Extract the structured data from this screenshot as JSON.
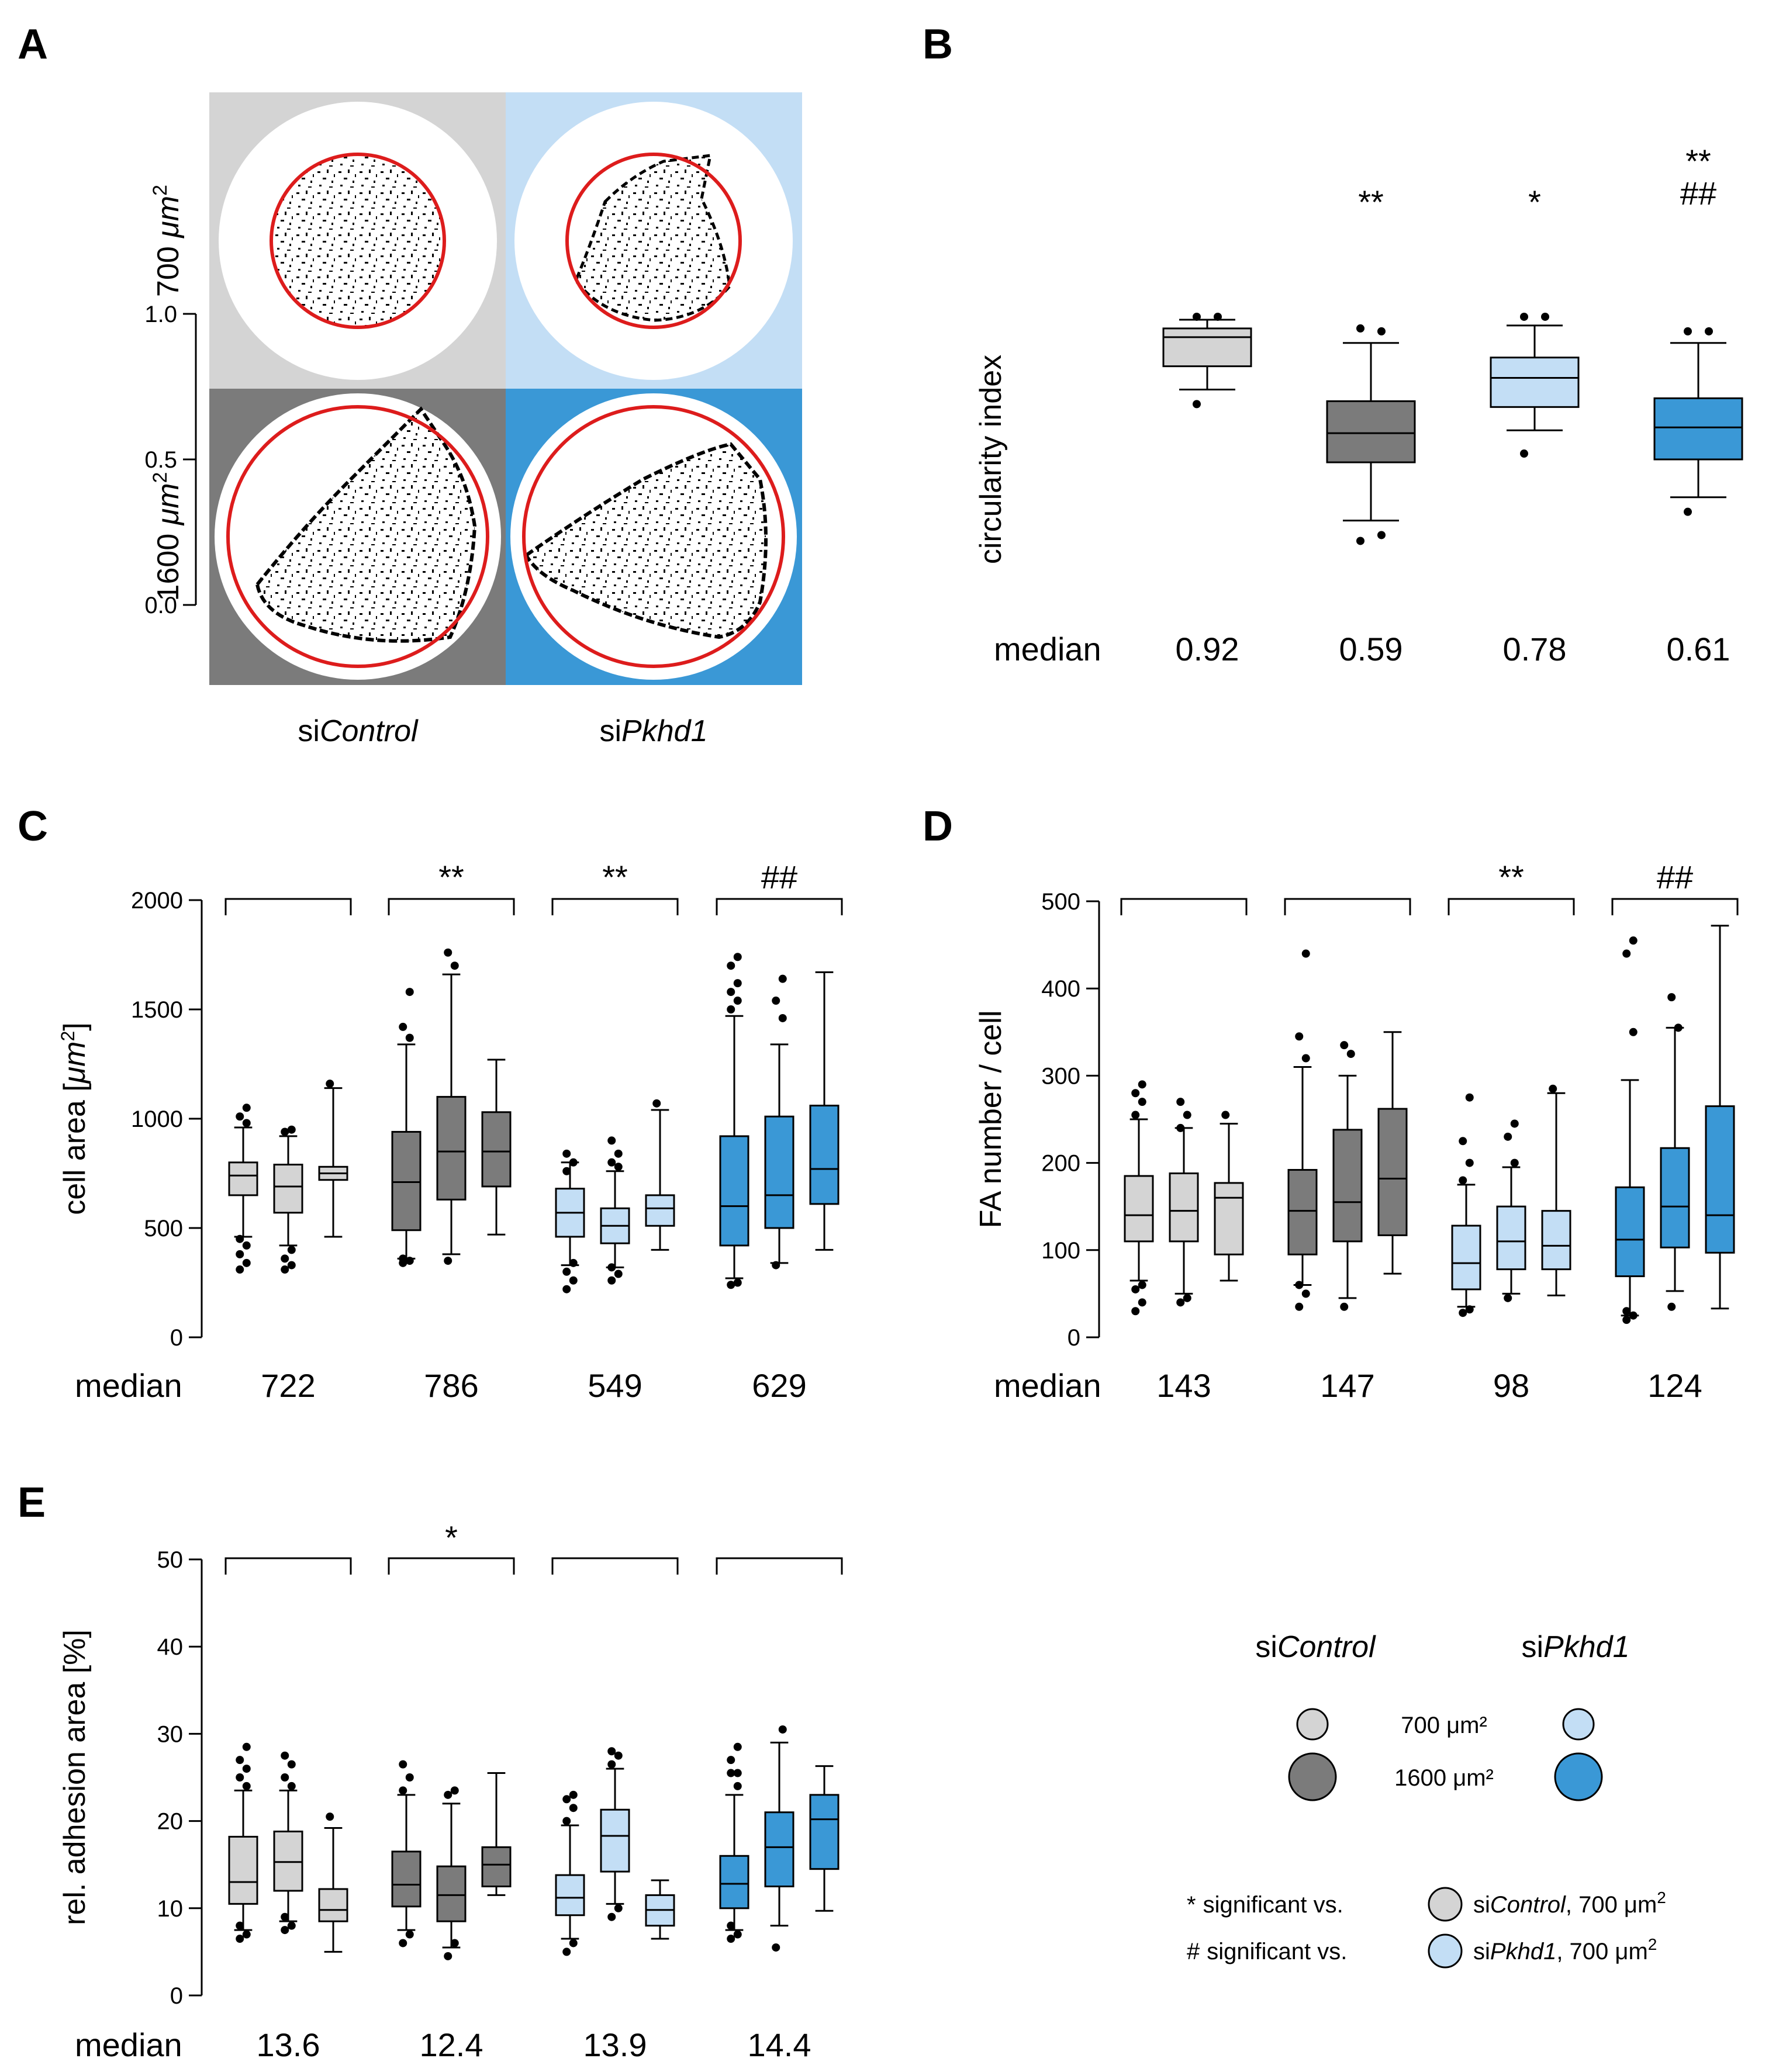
{
  "colors": {
    "control_700": "#d4d4d4",
    "control_1600": "#7b7b7b",
    "pkhd1_700": "#c3def5",
    "pkhd1_1600": "#3a98d6",
    "fit_circle": "#dd1c1c"
  },
  "panel_labels": [
    "A",
    "B",
    "C",
    "D",
    "E"
  ],
  "panel_a": {
    "row_labels": [
      {
        "text": "700 ",
        "unit": "μm",
        "sup": "2"
      },
      {
        "text": "1600 ",
        "unit": "μm",
        "sup": "2"
      }
    ],
    "col_labels": [
      {
        "prefix": "si",
        "gene": "Control"
      },
      {
        "prefix": "si",
        "gene": "Pkhd1"
      }
    ]
  },
  "legend": {
    "header": [
      {
        "prefix": "si",
        "gene": "Control"
      },
      {
        "prefix": "si",
        "gene": "Pkhd1"
      }
    ],
    "sizes": [
      "700 μm²",
      "1600 μm²"
    ],
    "notes": [
      {
        "symbol": "*",
        "text": "significant  vs.",
        "prefix": "si",
        "gene": "Control",
        "suffix": ",  700 μm",
        "sup": "2"
      },
      {
        "symbol": "#",
        "text": "significant  vs.",
        "prefix": "si",
        "gene": "Pkhd1",
        "suffix": ",   700 μm",
        "sup": "2"
      }
    ]
  },
  "chart_data": [
    {
      "panel": "B",
      "type": "box",
      "ylabel": "circularity index",
      "ylim": [
        0,
        1
      ],
      "yticks": [
        "0.0",
        "0.5",
        "1.0"
      ],
      "median_label": "median",
      "groups": [
        {
          "name": "siControl 700 μm²",
          "median_text": "0.92",
          "sig": [],
          "box": {
            "q1": 0.82,
            "median": 0.92,
            "q3": 0.95,
            "wlo": 0.74,
            "whi": 0.98,
            "outliers": [
              0.69,
              0.99,
              0.99
            ]
          }
        },
        {
          "name": "siControl 1600 μm²",
          "median_text": "0.59",
          "sig": [
            "**"
          ],
          "box": {
            "q1": 0.49,
            "median": 0.59,
            "q3": 0.7,
            "wlo": 0.29,
            "whi": 0.9,
            "outliers": [
              0.22,
              0.24,
              0.95,
              0.94
            ]
          }
        },
        {
          "name": "siPkhd1 700 μm²",
          "median_text": "0.78",
          "sig": [
            "*"
          ],
          "box": {
            "q1": 0.68,
            "median": 0.78,
            "q3": 0.85,
            "wlo": 0.6,
            "whi": 0.96,
            "outliers": [
              0.52,
              0.99,
              0.99
            ]
          }
        },
        {
          "name": "siPkhd1 1600 μm²",
          "median_text": "0.61",
          "sig": [
            "**",
            "##"
          ],
          "box": {
            "q1": 0.5,
            "median": 0.61,
            "q3": 0.71,
            "wlo": 0.37,
            "whi": 0.9,
            "outliers": [
              0.32,
              0.94,
              0.94
            ]
          }
        }
      ]
    },
    {
      "panel": "C",
      "type": "box",
      "ylabel": "cell area [",
      "yunit": "μm",
      "yunit_sup": "2",
      "yclose": "]",
      "ylim": [
        0,
        2000
      ],
      "yticks": [
        "0",
        "500",
        "1000",
        "1500",
        "2000"
      ],
      "median_label": "median",
      "groups": [
        {
          "name": "siControl 700 μm²",
          "median_text": "722",
          "sig": "",
          "boxes": [
            {
              "q1": 650,
              "median": 740,
              "q3": 800,
              "wlo": 460,
              "whi": 960,
              "outliers": [
                310,
                340,
                380,
                420,
                450,
                980,
                1010,
                1050
              ]
            },
            {
              "q1": 570,
              "median": 690,
              "q3": 790,
              "wlo": 420,
              "whi": 920,
              "outliers": [
                310,
                330,
                360,
                400,
                940,
                950
              ]
            },
            {
              "q1": 720,
              "median": 750,
              "q3": 780,
              "wlo": 460,
              "whi": 1140,
              "outliers": [
                1160
              ]
            }
          ]
        },
        {
          "name": "siControl 1600 μm²",
          "median_text": "786",
          "sig": "**",
          "boxes": [
            {
              "q1": 490,
              "median": 710,
              "q3": 940,
              "wlo": 360,
              "whi": 1340,
              "outliers": [
                340,
                350,
                360,
                1370,
                1420,
                1580
              ]
            },
            {
              "q1": 630,
              "median": 850,
              "q3": 1100,
              "wlo": 380,
              "whi": 1660,
              "outliers": [
                350,
                1700,
                1760
              ]
            },
            {
              "q1": 690,
              "median": 850,
              "q3": 1030,
              "wlo": 470,
              "whi": 1270,
              "outliers": []
            }
          ]
        },
        {
          "name": "siPkhd1 700 μm²",
          "median_text": "549",
          "sig": "**",
          "boxes": [
            {
              "q1": 460,
              "median": 570,
              "q3": 680,
              "wlo": 330,
              "whi": 800,
              "outliers": [
                220,
                260,
                300,
                340,
                760,
                800,
                840
              ]
            },
            {
              "q1": 430,
              "median": 510,
              "q3": 590,
              "wlo": 320,
              "whi": 760,
              "outliers": [
                260,
                290,
                320,
                780,
                800,
                840,
                900
              ]
            },
            {
              "q1": 510,
              "median": 590,
              "q3": 650,
              "wlo": 400,
              "whi": 1040,
              "outliers": [
                1070
              ]
            }
          ]
        },
        {
          "name": "siPkhd1 1600 μm²",
          "median_text": "629",
          "sig": "##",
          "boxes": [
            {
              "q1": 420,
              "median": 600,
              "q3": 920,
              "wlo": 270,
              "whi": 1470,
              "outliers": [
                240,
                250,
                1500,
                1540,
                1580,
                1620,
                1700,
                1740
              ]
            },
            {
              "q1": 500,
              "median": 650,
              "q3": 1010,
              "wlo": 340,
              "whi": 1340,
              "outliers": [
                330,
                1460,
                1540,
                1640
              ]
            },
            {
              "q1": 610,
              "median": 770,
              "q3": 1060,
              "wlo": 400,
              "whi": 1670,
              "outliers": []
            }
          ]
        }
      ]
    },
    {
      "panel": "D",
      "type": "box",
      "ylabel": "FA number / cell",
      "ylim": [
        0,
        500
      ],
      "yticks": [
        "0",
        "100",
        "200",
        "300",
        "400",
        "500"
      ],
      "median_label": "median",
      "groups": [
        {
          "name": "siControl 700 μm²",
          "median_text": "143",
          "sig": "",
          "boxes": [
            {
              "q1": 110,
              "median": 140,
              "q3": 185,
              "wlo": 65,
              "whi": 250,
              "outliers": [
                30,
                40,
                55,
                60,
                255,
                270,
                280,
                290
              ]
            },
            {
              "q1": 110,
              "median": 145,
              "q3": 188,
              "wlo": 50,
              "whi": 240,
              "outliers": [
                40,
                45,
                240,
                255,
                270
              ]
            },
            {
              "q1": 95,
              "median": 160,
              "q3": 177,
              "wlo": 65,
              "whi": 245,
              "outliers": [
                255
              ]
            }
          ]
        },
        {
          "name": "siControl 1600 μm²",
          "median_text": "147",
          "sig": "",
          "boxes": [
            {
              "q1": 95,
              "median": 145,
              "q3": 192,
              "wlo": 60,
              "whi": 310,
              "outliers": [
                35,
                50,
                60,
                320,
                345,
                440
              ]
            },
            {
              "q1": 110,
              "median": 155,
              "q3": 238,
              "wlo": 45,
              "whi": 300,
              "outliers": [
                35,
                325,
                335
              ]
            },
            {
              "q1": 117,
              "median": 182,
              "q3": 262,
              "wlo": 73,
              "whi": 350,
              "outliers": []
            }
          ]
        },
        {
          "name": "siPkhd1 700 μm²",
          "median_text": "98",
          "sig": "**",
          "boxes": [
            {
              "q1": 55,
              "median": 85,
              "q3": 128,
              "wlo": 35,
              "whi": 175,
              "outliers": [
                28,
                32,
                180,
                200,
                225,
                275
              ]
            },
            {
              "q1": 78,
              "median": 110,
              "q3": 150,
              "wlo": 50,
              "whi": 195,
              "outliers": [
                45,
                200,
                230,
                245
              ]
            },
            {
              "q1": 78,
              "median": 105,
              "q3": 145,
              "wlo": 48,
              "whi": 280,
              "outliers": [
                285
              ]
            }
          ]
        },
        {
          "name": "siPkhd1 1600 μm²",
          "median_text": "124",
          "sig": "##",
          "boxes": [
            {
              "q1": 70,
              "median": 112,
              "q3": 172,
              "wlo": 25,
              "whi": 295,
              "outliers": [
                20,
                25,
                30,
                350,
                440,
                455
              ]
            },
            {
              "q1": 103,
              "median": 150,
              "q3": 217,
              "wlo": 53,
              "whi": 355,
              "outliers": [
                35,
                355,
                390
              ]
            },
            {
              "q1": 97,
              "median": 140,
              "q3": 265,
              "wlo": 33,
              "whi": 472,
              "outliers": []
            }
          ]
        }
      ]
    },
    {
      "panel": "E",
      "type": "box",
      "ylabel": "rel. adhesion area [%]",
      "ylim": [
        0,
        50
      ],
      "yticks": [
        "0",
        "10",
        "20",
        "30",
        "40",
        "50"
      ],
      "median_label": "median",
      "groups": [
        {
          "name": "siControl 700 μm²",
          "median_text": "13.6",
          "sig": "",
          "boxes": [
            {
              "q1": 10.5,
              "median": 13,
              "q3": 18.2,
              "wlo": 7.5,
              "whi": 23.5,
              "outliers": [
                6.5,
                7,
                8,
                24,
                25,
                26,
                27,
                28.5
              ]
            },
            {
              "q1": 12,
              "median": 15.3,
              "q3": 18.8,
              "wlo": 8.5,
              "whi": 23.5,
              "outliers": [
                7.5,
                8,
                9,
                24,
                25,
                26.5,
                27.5
              ]
            },
            {
              "q1": 8.5,
              "median": 9.8,
              "q3": 12.2,
              "wlo": 5,
              "whi": 19.2,
              "outliers": [
                20.5
              ]
            }
          ]
        },
        {
          "name": "siControl 1600 μm²",
          "median_text": "12.4",
          "sig": "*",
          "boxes": [
            {
              "q1": 10.2,
              "median": 12.7,
              "q3": 16.5,
              "wlo": 7.5,
              "whi": 23,
              "outliers": [
                6,
                7,
                23.5,
                25,
                26.5
              ]
            },
            {
              "q1": 8.5,
              "median": 11.5,
              "q3": 14.8,
              "wlo": 5.5,
              "whi": 22,
              "outliers": [
                4.5,
                6,
                23,
                23.5
              ]
            },
            {
              "q1": 12.5,
              "median": 15,
              "q3": 17,
              "wlo": 11.5,
              "whi": 25.5,
              "outliers": []
            }
          ]
        },
        {
          "name": "siPkhd1 700 μm²",
          "median_text": "13.9",
          "sig": "",
          "boxes": [
            {
              "q1": 9.2,
              "median": 11.2,
              "q3": 13.8,
              "wlo": 6.5,
              "whi": 19.5,
              "outliers": [
                5,
                6,
                20,
                21.5,
                22.5,
                23
              ]
            },
            {
              "q1": 14.2,
              "median": 18.3,
              "q3": 21.3,
              "wlo": 10.5,
              "whi": 26,
              "outliers": [
                9,
                10,
                26.5,
                27.5,
                28
              ]
            },
            {
              "q1": 8,
              "median": 9.8,
              "q3": 11.5,
              "wlo": 6.5,
              "whi": 13.2,
              "outliers": []
            }
          ]
        },
        {
          "name": "siPkhd1 1600 μm²",
          "median_text": "14.4",
          "sig": "",
          "boxes": [
            {
              "q1": 10,
              "median": 12.8,
              "q3": 16,
              "wlo": 7.5,
              "whi": 23,
              "outliers": [
                6.5,
                7,
                8,
                24,
                25.5,
                25.5,
                27,
                28.5
              ]
            },
            {
              "q1": 12.5,
              "median": 17,
              "q3": 21,
              "wlo": 8,
              "whi": 29,
              "outliers": [
                5.5,
                30.5
              ]
            },
            {
              "q1": 14.5,
              "median": 20.2,
              "q3": 23,
              "wlo": 9.7,
              "whi": 26.3,
              "outliers": []
            }
          ]
        }
      ]
    }
  ]
}
